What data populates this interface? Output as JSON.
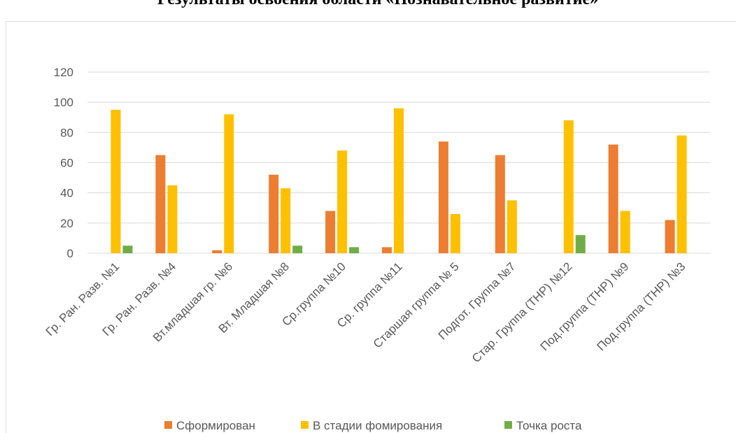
{
  "chart_data": {
    "type": "bar",
    "title": "Результаты освоения области «Познавательное развитие»",
    "categories": [
      "Гр. Ран. Разв. №1",
      "Гр. Ран. Разв. №4",
      "Вт.младшая гр. №6",
      "Вт. Младшая №8",
      "Ср.группа №10",
      "Ср. группа №11",
      "Старшая группа № 5",
      "Подгот. Группа №7",
      "Стар. Группа  (ТНР) №12",
      "Под.группа (ТНР) №9",
      "Под.группа (ТНР) №3"
    ],
    "series": [
      {
        "name": "Сформирован",
        "color": "#ed7d31",
        "values": [
          0,
          65,
          2,
          52,
          28,
          4,
          74,
          65,
          0,
          72,
          22
        ]
      },
      {
        "name": "В стадии фомирования",
        "color": "#ffc000",
        "values": [
          95,
          45,
          92,
          43,
          68,
          96,
          26,
          35,
          88,
          28,
          78
        ]
      },
      {
        "name": "Точка роста",
        "color": "#70ad47",
        "values": [
          5,
          0,
          0,
          5,
          4,
          0,
          0,
          0,
          12,
          0,
          0
        ]
      }
    ],
    "ylim": [
      0,
      120
    ],
    "yticks": [
      0,
      20,
      40,
      60,
      80,
      100,
      120
    ],
    "grid": true,
    "legend": "bottom"
  }
}
